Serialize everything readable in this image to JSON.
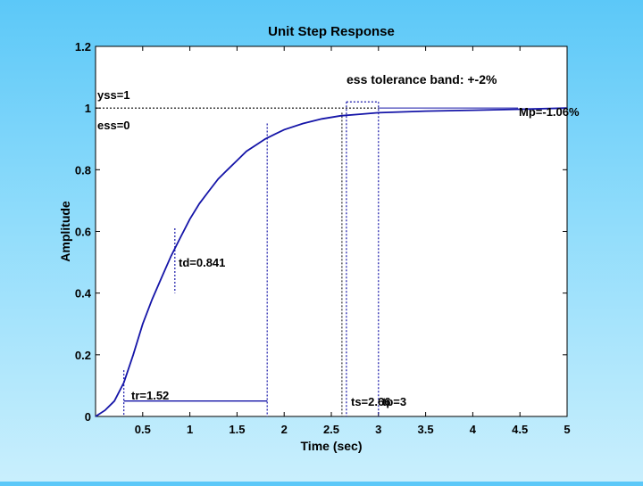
{
  "chart_data": {
    "type": "line",
    "title": "Unit Step Response",
    "xlabel": "Time (sec)",
    "ylabel": "Amplitude",
    "xlim": [
      0,
      5
    ],
    "ylim": [
      0,
      1.2
    ],
    "grid": false,
    "xticks": [
      "0.5",
      "1",
      "1.5",
      "2",
      "2.5",
      "3",
      "3.5",
      "4",
      "4.5",
      "5"
    ],
    "yticks": [
      "0",
      "0.2",
      "0.4",
      "0.6",
      "0.8",
      "1",
      "1.2"
    ],
    "series": [
      {
        "x": [
          0,
          0.1,
          0.2,
          0.3,
          0.4,
          0.5,
          0.6,
          0.7,
          0.8,
          0.9,
          1.0,
          1.1,
          1.2,
          1.3,
          1.4,
          1.5,
          1.6,
          1.7,
          1.8,
          1.9,
          2.0,
          2.2,
          2.4,
          2.6,
          2.8,
          3.0,
          3.5,
          4.0,
          4.5,
          5.0
        ],
        "values": [
          0,
          0.02,
          0.05,
          0.11,
          0.2,
          0.3,
          0.38,
          0.45,
          0.52,
          0.58,
          0.64,
          0.69,
          0.73,
          0.77,
          0.8,
          0.83,
          0.86,
          0.88,
          0.9,
          0.915,
          0.93,
          0.95,
          0.965,
          0.975,
          0.98,
          0.985,
          0.99,
          0.993,
          0.996,
          1.0
        ]
      }
    ],
    "annotations": {
      "title_band": "ess tolerance band: +-2%",
      "yss": "yss=1",
      "ess": "ess=0",
      "mp": "Mp=-1.06%",
      "td": "td=0.841",
      "tr": "tr=1.52",
      "ts": "ts=2.66",
      "tp": "tp=3"
    },
    "markers": {
      "tr_start": 0.3,
      "tr_end": 1.82,
      "td": 0.841,
      "ts": 2.66,
      "tp": 3.0,
      "band_low": 0.98,
      "band_high": 1.02,
      "yss": 1.0
    }
  },
  "colors": {
    "curve": "#1515a8",
    "axes": "#000000",
    "plot_bg": "#ffffff"
  }
}
